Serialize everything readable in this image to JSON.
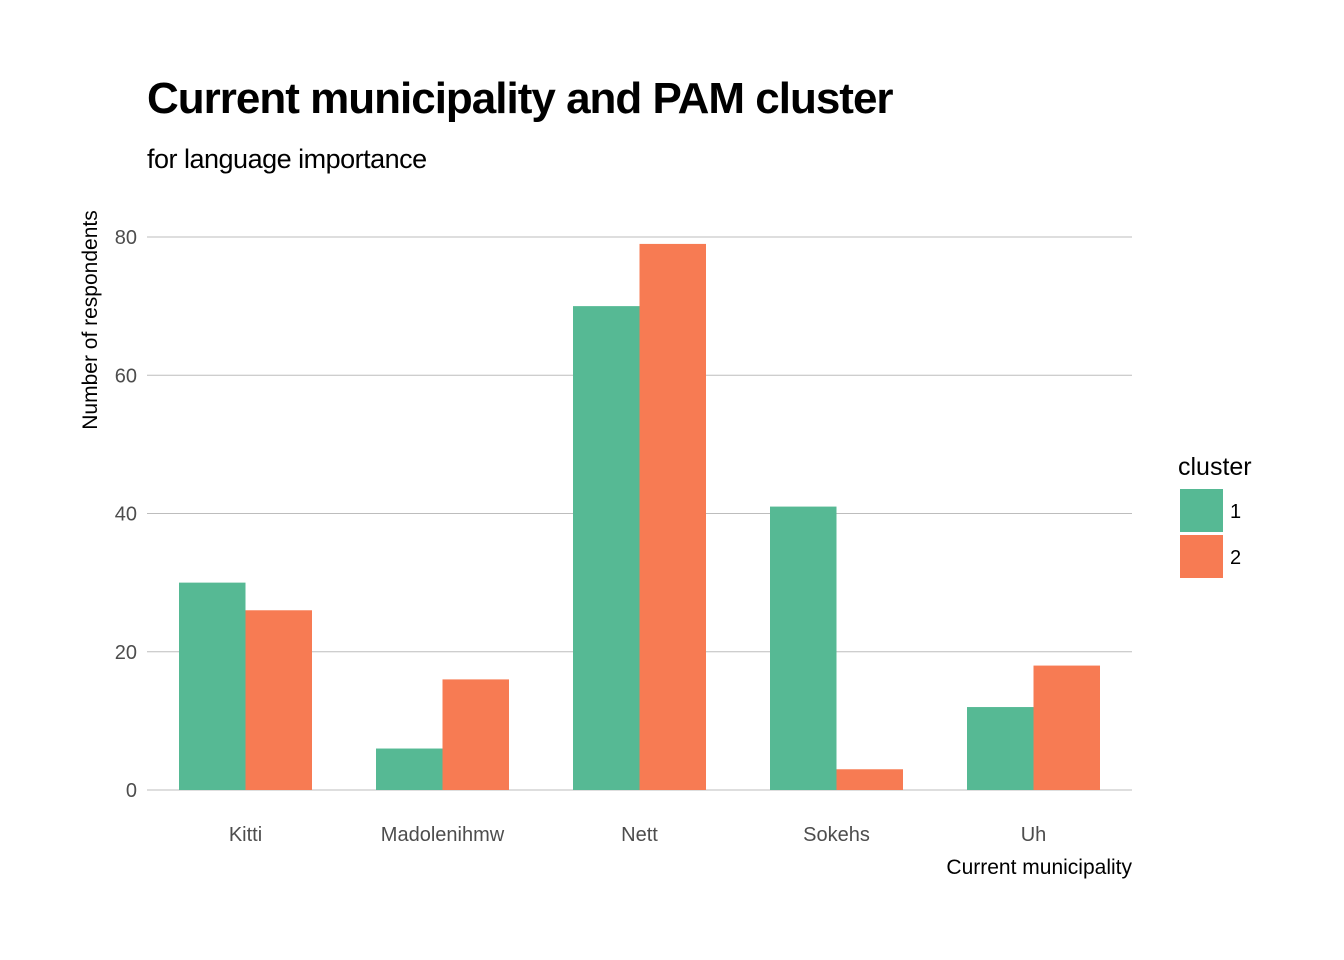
{
  "title": "Current municipality and PAM cluster",
  "subtitle": "for language importance",
  "chart_data": {
    "type": "bar",
    "title": "Current municipality and PAM cluster",
    "subtitle": "for language importance",
    "xlabel": "Current municipality",
    "ylabel": "Number of respondents",
    "categories": [
      "Kitti",
      "Madolenihmw",
      "Nett",
      "Sokehs",
      "Uh"
    ],
    "series": [
      {
        "name": "1",
        "color": "#56b994",
        "values": [
          30,
          6,
          70,
          41,
          12
        ]
      },
      {
        "name": "2",
        "color": "#f77b53",
        "values": [
          26,
          16,
          79,
          3,
          18
        ]
      }
    ],
    "ylim": [
      0,
      80
    ],
    "yticks": [
      0,
      20,
      40,
      60,
      80
    ],
    "grid": true,
    "legend": {
      "title": "cluster",
      "position": "right"
    }
  }
}
